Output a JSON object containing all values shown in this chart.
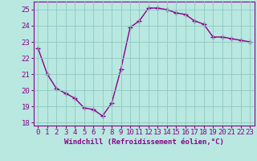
{
  "x": [
    0,
    1,
    2,
    3,
    4,
    5,
    6,
    7,
    8,
    9,
    10,
    11,
    12,
    13,
    14,
    15,
    16,
    17,
    18,
    19,
    20,
    21,
    22,
    23
  ],
  "y": [
    22.6,
    21.0,
    20.1,
    19.8,
    19.5,
    18.9,
    18.8,
    18.4,
    19.2,
    21.3,
    23.9,
    24.3,
    25.1,
    25.1,
    25.0,
    24.8,
    24.7,
    24.3,
    24.1,
    23.3,
    23.3,
    23.2,
    23.1,
    23.0
  ],
  "line_color": "#8b008b",
  "marker": "+",
  "marker_size": 4,
  "marker_linewidth": 1.0,
  "bg_color": "#b8e8e0",
  "grid_color": "#90c8c0",
  "xlabel": "Windchill (Refroidissement éolien,°C)",
  "ylabel": "",
  "title": "",
  "xlim": [
    -0.5,
    23.5
  ],
  "ylim": [
    17.8,
    25.5
  ],
  "yticks": [
    18,
    19,
    20,
    21,
    22,
    23,
    24,
    25
  ],
  "xticks": [
    0,
    1,
    2,
    3,
    4,
    5,
    6,
    7,
    8,
    9,
    10,
    11,
    12,
    13,
    14,
    15,
    16,
    17,
    18,
    19,
    20,
    21,
    22,
    23
  ],
  "xlabel_color": "#8b008b",
  "tick_color": "#8b008b",
  "axis_color": "#8b008b",
  "xlabel_fontsize": 6.5,
  "tick_fontsize": 6.5,
  "linewidth": 1.0
}
